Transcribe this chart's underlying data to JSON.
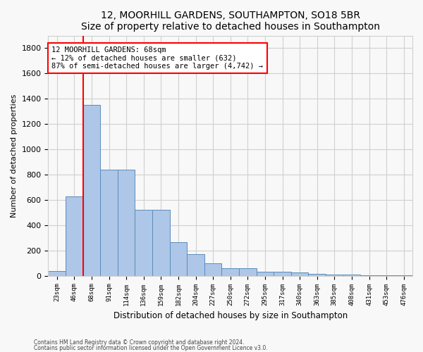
{
  "title1": "12, MOORHILL GARDENS, SOUTHAMPTON, SO18 5BR",
  "title2": "Size of property relative to detached houses in Southampton",
  "xlabel": "Distribution of detached houses by size in Southampton",
  "ylabel": "Number of detached properties",
  "categories": [
    "23sqm",
    "46sqm",
    "68sqm",
    "91sqm",
    "114sqm",
    "136sqm",
    "159sqm",
    "182sqm",
    "204sqm",
    "227sqm",
    "250sqm",
    "272sqm",
    "295sqm",
    "317sqm",
    "340sqm",
    "363sqm",
    "385sqm",
    "408sqm",
    "431sqm",
    "453sqm",
    "476sqm"
  ],
  "values": [
    40,
    630,
    1350,
    840,
    840,
    520,
    520,
    265,
    170,
    100,
    60,
    60,
    30,
    30,
    25,
    15,
    12,
    10,
    5,
    5,
    5
  ],
  "bar_color": "#aec6e8",
  "bar_edge_color": "#5b8db8",
  "red_line_index": 2,
  "annotation_text": "12 MOORHILL GARDENS: 68sqm\n← 12% of detached houses are smaller (632)\n87% of semi-detached houses are larger (4,742) →",
  "annotation_box_color": "white",
  "annotation_box_edge_color": "red",
  "ylim": [
    0,
    1900
  ],
  "yticks": [
    0,
    200,
    400,
    600,
    800,
    1000,
    1200,
    1400,
    1600,
    1800
  ],
  "footnote1": "Contains HM Land Registry data © Crown copyright and database right 2024.",
  "footnote2": "Contains public sector information licensed under the Open Government Licence v3.0.",
  "bg_color": "#f8f8f8",
  "grid_color": "#d0d0d0",
  "title_fontsize": 10,
  "bar_width": 1.0
}
